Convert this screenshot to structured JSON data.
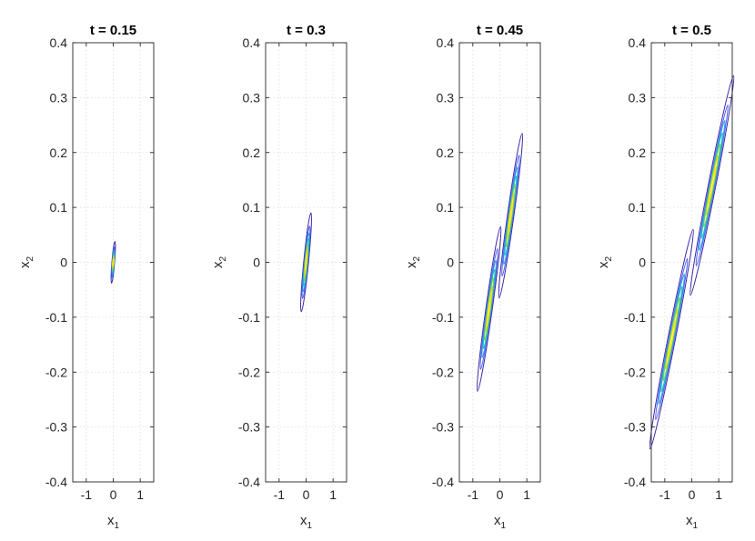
{
  "chart_data": [
    {
      "type": "contour",
      "title": "t = 0.15",
      "xlabel": "x",
      "xlabel_sub": "1",
      "ylabel": "x",
      "ylabel_sub": "2",
      "xlim": [
        -1.5,
        1.5
      ],
      "ylim": [
        -0.4,
        0.4
      ],
      "xticks": [
        -1,
        0,
        1
      ],
      "yticks": [
        -0.4,
        -0.3,
        -0.2,
        -0.1,
        0,
        0.1,
        0.2,
        0.3,
        0.4
      ],
      "grid": true,
      "blobs": [
        {
          "cx": 0.0,
          "cy": 0.0,
          "half_length": 0.038,
          "slope": 0.6,
          "half_width": 0.05,
          "peak": 1.0
        }
      ]
    },
    {
      "type": "contour",
      "title": "t = 0.3",
      "xlabel": "x",
      "xlabel_sub": "1",
      "ylabel": "x",
      "ylabel_sub": "2",
      "xlim": [
        -1.5,
        1.5
      ],
      "ylim": [
        -0.4,
        0.4
      ],
      "xticks": [
        -1,
        0,
        1
      ],
      "yticks": [
        -0.4,
        -0.3,
        -0.2,
        -0.1,
        0,
        0.1,
        0.2,
        0.3,
        0.4
      ],
      "grid": true,
      "blobs": [
        {
          "cx": 0.0,
          "cy": 0.0,
          "half_length": 0.09,
          "slope": 0.5,
          "half_width": 0.09,
          "peak": 1.0
        }
      ]
    },
    {
      "type": "contour",
      "title": "t = 0.45",
      "xlabel": "x",
      "xlabel_sub": "1",
      "ylabel": "x",
      "ylabel_sub": "2",
      "xlim": [
        -1.5,
        1.5
      ],
      "ylim": [
        -0.4,
        0.4
      ],
      "xticks": [
        -1,
        0,
        1
      ],
      "yticks": [
        -0.4,
        -0.3,
        -0.2,
        -0.1,
        0,
        0.1,
        0.2,
        0.3,
        0.4
      ],
      "grid": true,
      "blobs": [
        {
          "cx": -0.4,
          "cy": -0.085,
          "half_length": 0.15,
          "slope": 0.35,
          "half_width": 0.12,
          "peak": 1.0
        },
        {
          "cx": 0.4,
          "cy": 0.085,
          "half_length": 0.15,
          "slope": 0.35,
          "half_width": 0.12,
          "peak": 1.0
        }
      ]
    },
    {
      "type": "contour",
      "title": "t = 0.5",
      "xlabel": "x",
      "xlabel_sub": "1",
      "ylabel": "x",
      "ylabel_sub": "2",
      "xlim": [
        -1.5,
        1.5
      ],
      "ylim": [
        -0.4,
        0.4
      ],
      "xticks": [
        -1,
        0,
        1
      ],
      "yticks": [
        -0.4,
        -0.3,
        -0.2,
        -0.1,
        0,
        0.1,
        0.2,
        0.3,
        0.4
      ],
      "grid": true,
      "blobs": [
        {
          "cx": -0.75,
          "cy": -0.14,
          "half_length": 0.2,
          "slope": 0.25,
          "half_width": 0.14,
          "peak": 1.0
        },
        {
          "cx": 0.75,
          "cy": 0.14,
          "half_length": 0.2,
          "slope": 0.25,
          "half_width": 0.14,
          "peak": 1.0
        }
      ]
    }
  ],
  "contour_levels": [
    0.05,
    0.2,
    0.35,
    0.5,
    0.65,
    0.8,
    0.92
  ],
  "contour_colors": [
    "#3e26a8",
    "#4760f5",
    "#2a9ef0",
    "#22c4b4",
    "#7ad151",
    "#d7d91c",
    "#f5e81a"
  ]
}
